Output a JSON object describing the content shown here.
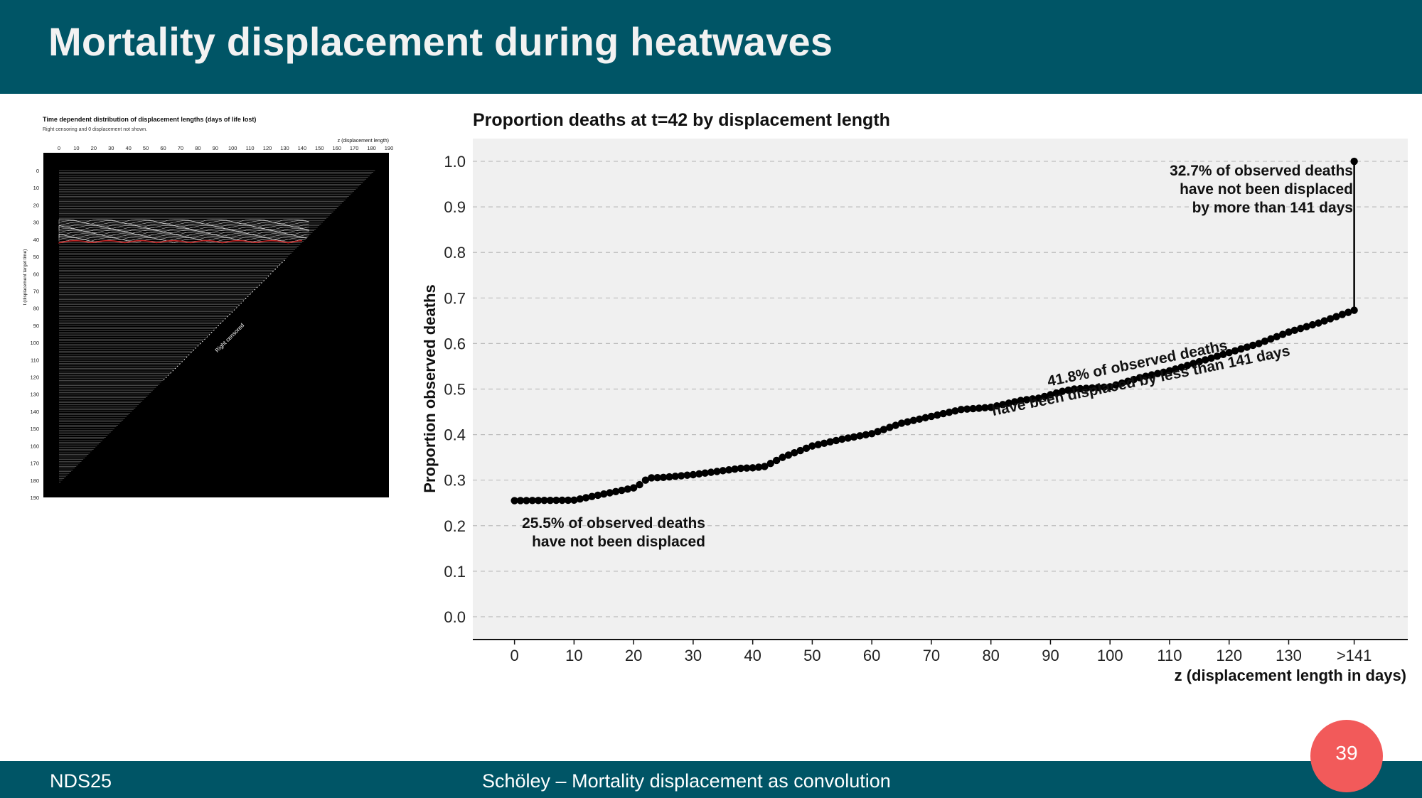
{
  "slide": {
    "title": "Mortality displacement during heatwaves",
    "footer_left": "NDS25",
    "footer_center": "Schöley – Mortality displacement as convolution",
    "page_number": "39"
  },
  "colors": {
    "header_bg": "#005566",
    "badge": "#f25a5a",
    "panel_bg": "#f0f0f0",
    "highlight": "#c62828"
  },
  "thumbnail": {
    "title": "Time dependent distribution of displacement lengths (days of life lost)",
    "subtitle": "Right censoring and 0 displacement not shown.",
    "x_label": "z (displacement length)",
    "y_label": "t (displacement target time)",
    "x_ticks": [
      "0",
      "10",
      "20",
      "30",
      "40",
      "50",
      "60",
      "70",
      "80",
      "90",
      "100",
      "110",
      "120",
      "130",
      "140",
      "150",
      "160",
      "170",
      "180",
      "190"
    ],
    "y_ticks": [
      "0",
      "10",
      "20",
      "30",
      "40",
      "50",
      "60",
      "70",
      "80",
      "90",
      "100",
      "110",
      "120",
      "130",
      "140",
      "150",
      "160",
      "170",
      "180",
      "190"
    ],
    "censor_label": "Right censored"
  },
  "chart_data": {
    "type": "scatter",
    "title": "Proportion deaths at t=42 by displacement length",
    "xlabel": "z (displacement length in days)",
    "ylabel": "Proportion observed deaths",
    "x_tick_labels": [
      "0",
      "10",
      "20",
      "30",
      "40",
      "50",
      "60",
      "70",
      "80",
      "90",
      "100",
      "110",
      "120",
      "130",
      ">141"
    ],
    "y_tick_labels": [
      "0.0",
      "0.1",
      "0.2",
      "0.3",
      "0.4",
      "0.5",
      "0.6",
      "0.7",
      "0.8",
      "0.9",
      "1.0"
    ],
    "xlim": [
      -7,
      150
    ],
    "ylim": [
      -0.05,
      1.05
    ],
    "grid": "horizontal dashed",
    "x_anchors": [
      0,
      10,
      20,
      21,
      22,
      23,
      25,
      30,
      38,
      40,
      42,
      45,
      50,
      55,
      60,
      65,
      70,
      75,
      80,
      85,
      88,
      92,
      94,
      100,
      105,
      110,
      115,
      120,
      125,
      130,
      135,
      141
    ],
    "y_anchors": [
      0.255,
      0.256,
      0.283,
      0.29,
      0.3,
      0.305,
      0.306,
      0.312,
      0.326,
      0.327,
      0.33,
      0.35,
      0.375,
      0.39,
      0.402,
      0.425,
      0.44,
      0.455,
      0.46,
      0.475,
      0.48,
      0.495,
      0.5,
      0.505,
      0.525,
      0.54,
      0.56,
      0.58,
      0.6,
      0.625,
      0.645,
      0.673
    ],
    "final_point": {
      "x": ">141",
      "y": 1.0
    },
    "annotations": [
      {
        "lines": [
          "32.7% of observed deaths",
          "have not been displaced",
          "by more than 141 days"
        ]
      },
      {
        "lines": [
          "41.8% of observed deaths",
          "have been displaced by less than 141 days"
        ]
      },
      {
        "lines": [
          "25.5% of observed deaths",
          "have not been displaced"
        ]
      }
    ]
  }
}
